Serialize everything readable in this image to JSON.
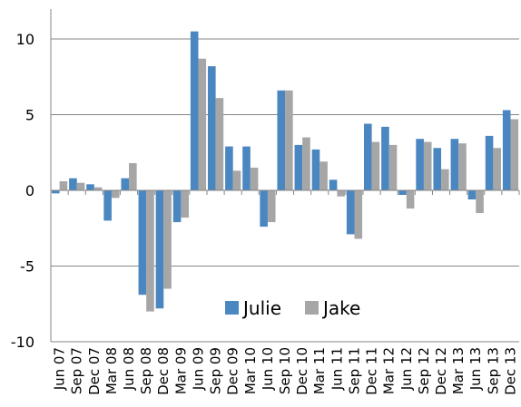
{
  "chart_data": {
    "type": "bar",
    "title": "",
    "xlabel": "",
    "ylabel": "",
    "ylim": [
      -10,
      10
    ],
    "yticks": [
      -10,
      -5,
      0,
      5,
      10
    ],
    "grid": "horizontal",
    "legend_position": "bottom-center",
    "categories": [
      "Jun 07",
      "Sep 07",
      "Dec 07",
      "Mar 08",
      "Jun 08",
      "Sep 08",
      "Dec 08",
      "Mar 09",
      "Jun 09",
      "Sep 09",
      "Dec 09",
      "Mar 10",
      "Jun 10",
      "Sep 10",
      "Dec 10",
      "Mar 11",
      "Jun 11",
      "Sep 11",
      "Dec 11",
      "Mar 12",
      "Jun 12",
      "Sep 12",
      "Dec 12",
      "Mar 13",
      "Jun 13",
      "Sep 13",
      "Dec 13"
    ],
    "series": [
      {
        "name": "Julie",
        "color": "#4A86C0",
        "values": [
          -0.2,
          0.8,
          0.4,
          -2.0,
          0.8,
          -6.9,
          -7.8,
          -2.1,
          10.5,
          8.2,
          2.9,
          2.9,
          -2.4,
          6.6,
          3.0,
          2.7,
          0.7,
          -2.9,
          4.4,
          4.2,
          -0.3,
          3.4,
          2.8,
          3.4,
          -0.6,
          3.6,
          5.3
        ]
      },
      {
        "name": "Jake",
        "color": "#A6A6A6",
        "values": [
          0.6,
          0.5,
          0.2,
          -0.5,
          1.8,
          -8.0,
          -6.5,
          -1.8,
          8.7,
          6.1,
          1.3,
          1.5,
          -2.1,
          6.6,
          3.5,
          1.9,
          -0.4,
          -3.2,
          3.2,
          3.0,
          -1.2,
          3.2,
          1.4,
          3.1,
          -1.5,
          2.8,
          4.7
        ]
      }
    ]
  }
}
